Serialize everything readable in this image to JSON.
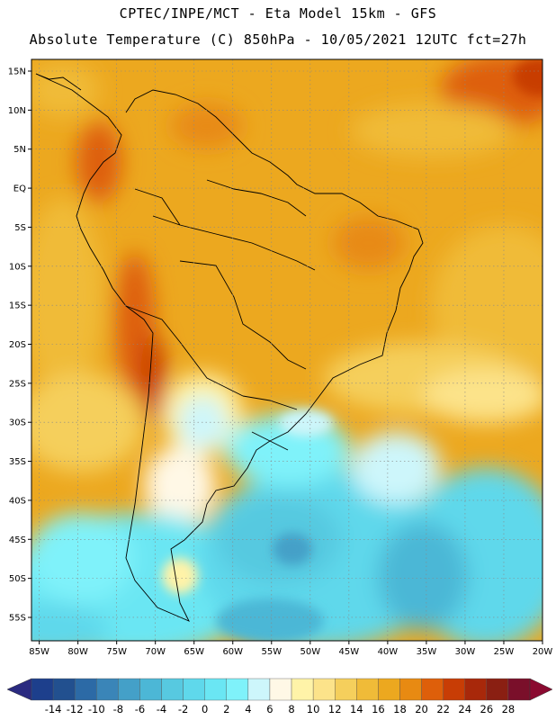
{
  "header": {
    "title_line1": "CPTEC/INPE/MCT -  Eta Model 15km - GFS",
    "title_line2": "Absolute Temperature (C) 850hPa - 10/05/2021 12UTC fct=27h"
  },
  "map": {
    "lat_labels": [
      "15N",
      "10N",
      "5N",
      "EQ",
      "5S",
      "10S",
      "15S",
      "20S",
      "25S",
      "30S",
      "35S",
      "40S",
      "45S",
      "50S",
      "55S"
    ],
    "lon_labels": [
      "85W",
      "80W",
      "75W",
      "70W",
      "65W",
      "60W",
      "55W",
      "50W",
      "45W",
      "40W",
      "35W",
      "30W",
      "25W",
      "20W"
    ],
    "lat_range": [
      16.5,
      -58
    ],
    "lon_range": [
      -86,
      -20
    ]
  },
  "colorbar": {
    "labels": [
      "-14",
      "-12",
      "-10",
      "-8",
      "-6",
      "-4",
      "-2",
      "0",
      "2",
      "4",
      "6",
      "8",
      "10",
      "12",
      "14",
      "16",
      "18",
      "20",
      "22",
      "24",
      "26",
      "28"
    ],
    "colors": [
      "#1d3f8c",
      "#22508f",
      "#2c6aa6",
      "#3a85b8",
      "#44a0c8",
      "#4cb7d6",
      "#57c9e0",
      "#5fd8eb",
      "#6ae6f3",
      "#7ff2fa",
      "#cdf6fb",
      "#fff8e6",
      "#fff3a8",
      "#fce38a",
      "#f5cf5c",
      "#f0bb38",
      "#eca81f",
      "#e88a12",
      "#de5f0a",
      "#c83d05",
      "#a8280a",
      "#8a1f12",
      "#7a0f2a"
    ],
    "under_color": "#2a2a80",
    "over_color": "#8a0a30"
  }
}
